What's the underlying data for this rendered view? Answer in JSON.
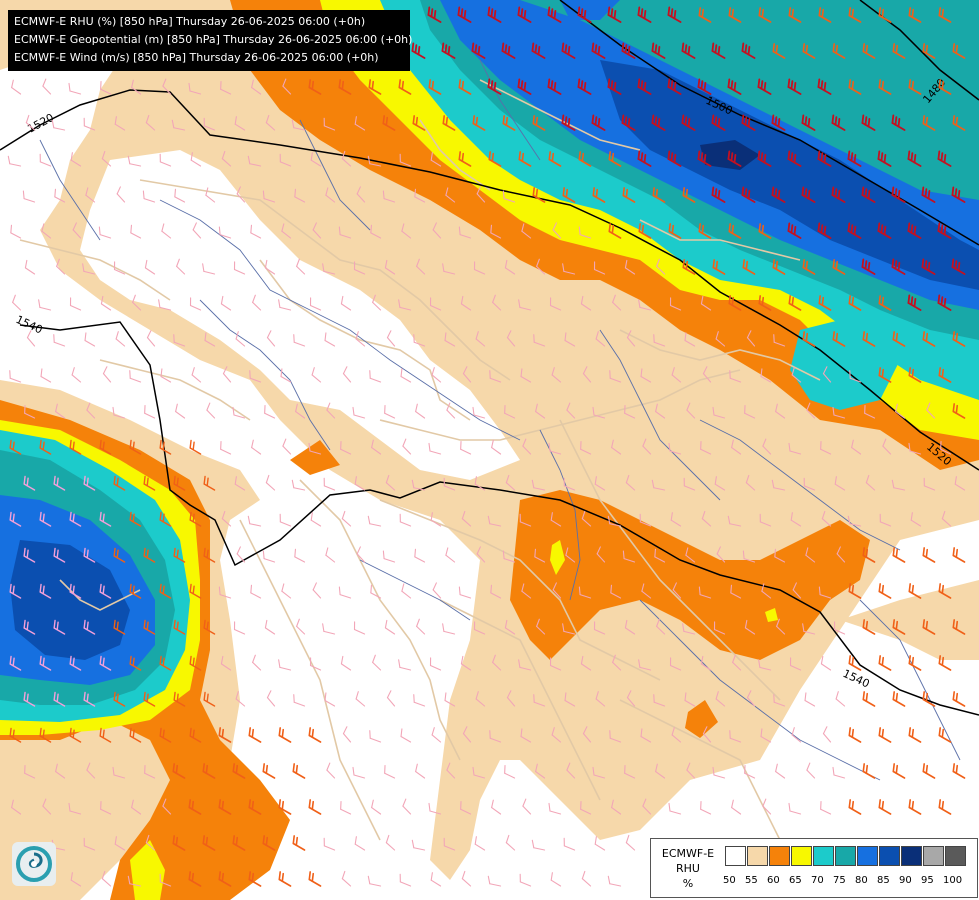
{
  "header": {
    "lines": [
      "ECMWF-E RHU (%) [850 hPa] Thursday 26-06-2025 06:00 (+0h)",
      "ECMWF-E Geopotential (m) [850 hPa] Thursday 26-06-2025 06:00 (+0h)",
      "ECMWF-E Wind (m/s) [850 hPa] Thursday 26-06-2025 06:00 (+0h)"
    ]
  },
  "contours": {
    "labels": [
      "1520",
      "1540",
      "1500",
      "1480",
      "1520",
      "1540"
    ]
  },
  "legend": {
    "title_lines": [
      "ECMWF-E",
      "RHU",
      "%"
    ],
    "ticks": [
      "50",
      "55",
      "60",
      "65",
      "70",
      "75",
      "80",
      "85",
      "90",
      "95",
      "100"
    ],
    "colors": [
      "#ffffff",
      "#f6d8aa",
      "#f5820a",
      "#f8f800",
      "#1ccbcb",
      "#18a8a8",
      "#1670e0",
      "#0b4fb0",
      "#0a2f78",
      "#a8a8a8",
      "#5a5a5a"
    ]
  },
  "map_colors": {
    "rhu_55": "#f6d8aa",
    "rhu_60": "#f5820a",
    "rhu_65": "#f8f800",
    "rhu_70": "#1ccbcb",
    "rhu_75": "#18a8a8",
    "rhu_80": "#1670e0",
    "rhu_85": "#0b4fb0",
    "rhu_90": "#0a2f78",
    "borders": "#e2c9a6",
    "rivers": "#5a6fa8",
    "contour_line": "#000000",
    "wind_light": "#f2a6b8",
    "wind_medium": "#f06018",
    "wind_strong": "#c41020"
  },
  "logo": {
    "icon": "ecmwf-swirl-logo",
    "colors": [
      "#2a9fb0",
      "#1a6d8a",
      "#ffffff"
    ]
  }
}
